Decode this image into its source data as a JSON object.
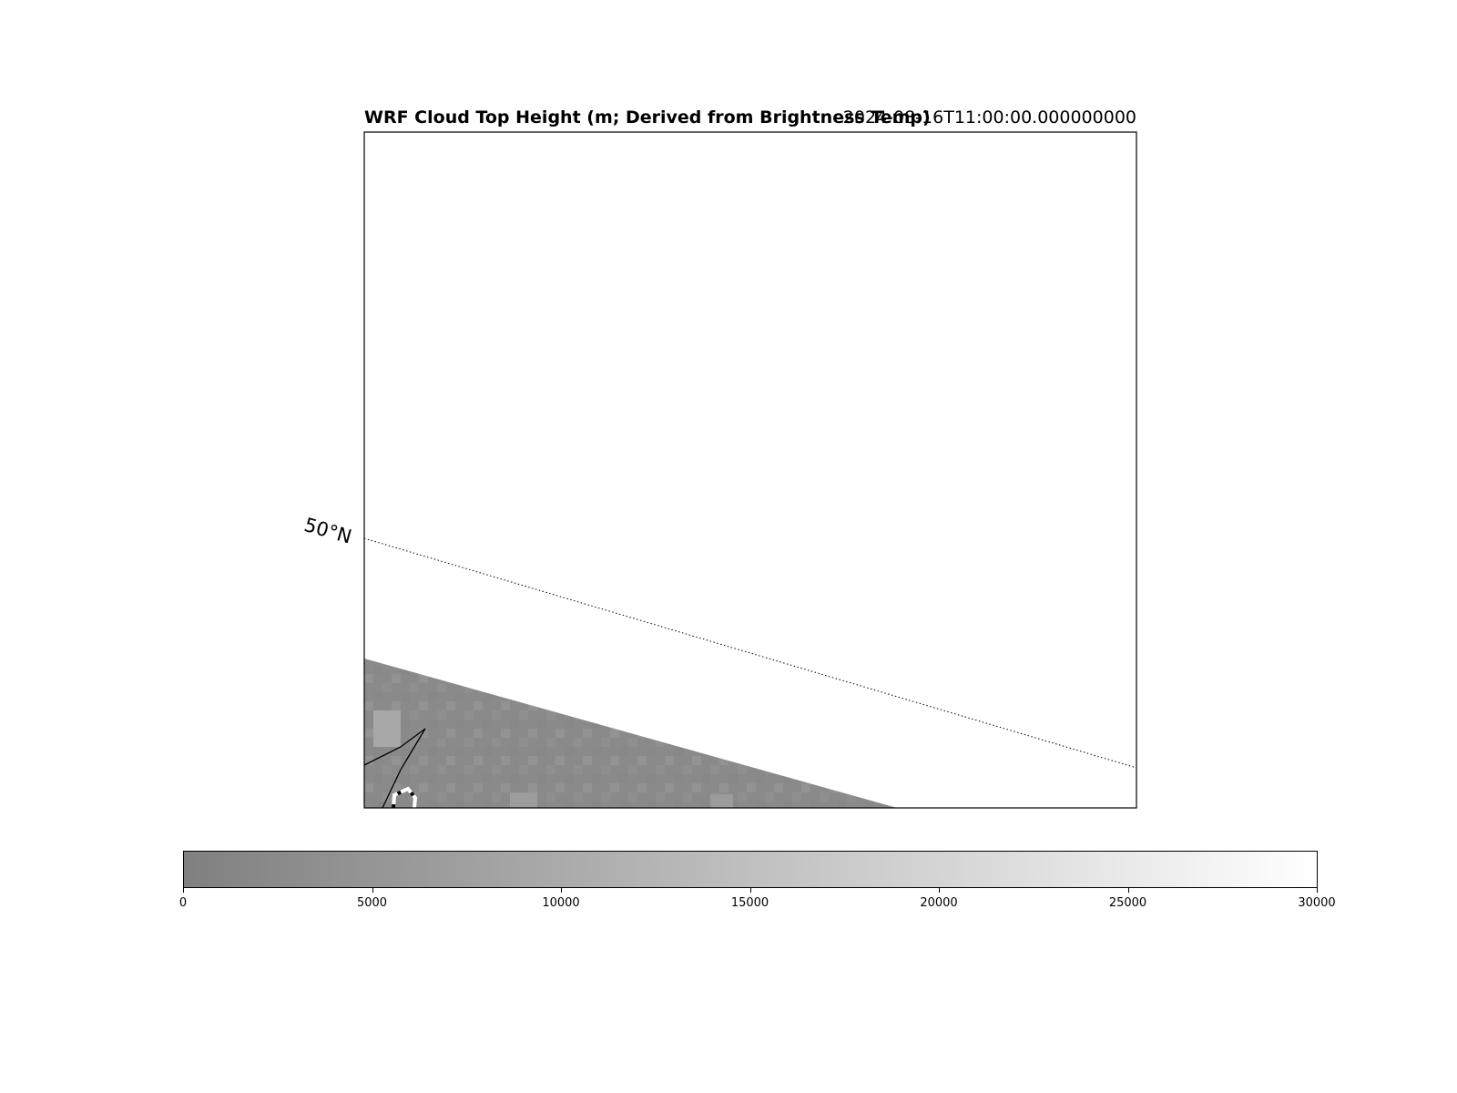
{
  "title": {
    "main": "WRF Cloud Top Height (m; Derived from Brightness Temp)",
    "time": "2024-08-16T11:00:00.000000000"
  },
  "map": {
    "latitude_label": "50°N",
    "fill_color_low": "#808080",
    "fill_color_high": "#ffffff"
  },
  "colorbar": {
    "ticks": [
      "0",
      "5000",
      "10000",
      "15000",
      "20000",
      "25000",
      "30000"
    ],
    "range": [
      0,
      30000
    ]
  }
}
